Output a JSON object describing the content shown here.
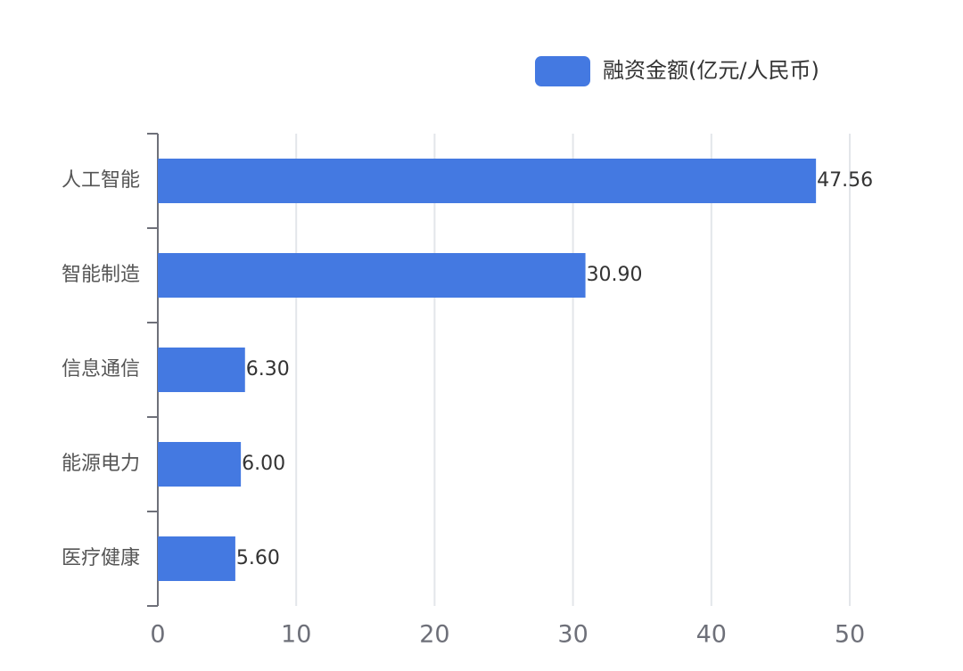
{
  "chart_data": {
    "type": "bar",
    "orientation": "horizontal",
    "categories": [
      "人工智能",
      "智能制造",
      "信息通信",
      "能源电力",
      "医疗健康"
    ],
    "series": [
      {
        "name": "融资金额(亿元/人民币)",
        "color": "#4479e1",
        "values": [
          47.56,
          30.9,
          6.3,
          6.0,
          5.6
        ],
        "value_labels": [
          "47.56",
          "30.90",
          "6.30",
          "6.00",
          "5.60"
        ]
      }
    ],
    "xlim": [
      0,
      50
    ],
    "xticks": [
      0,
      10,
      20,
      30,
      40,
      50
    ],
    "grid": true,
    "legend": "top-right"
  }
}
